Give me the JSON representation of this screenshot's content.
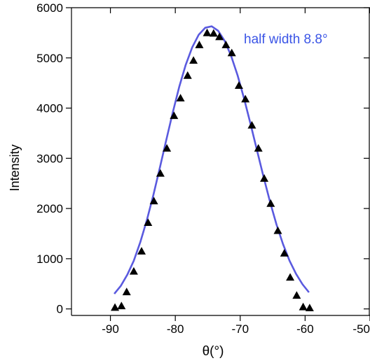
{
  "chart_data": {
    "type": "scatter",
    "xlabel": "θ(°)",
    "ylabel": "Intensity",
    "xlim": [
      -96,
      -50
    ],
    "ylim": [
      -130,
      6000
    ],
    "x_ticks": [
      -90,
      -80,
      -70,
      -60,
      -50
    ],
    "y_ticks": [
      0,
      1000,
      2000,
      3000,
      4000,
      5000,
      6000
    ],
    "grid": false,
    "legend": "none",
    "annotation": "half width 8.8°",
    "colors": {
      "fit": "#5a5adf",
      "points": "#000000",
      "annotation": "#3b55e6",
      "axis": "#000000"
    },
    "series": [
      {
        "marker": "triangle",
        "x": [
          -89.3,
          -88.3,
          -87.5,
          -86.4,
          -85.2,
          -84.2,
          -83.3,
          -82.3,
          -81.3,
          -80.2,
          -79.2,
          -78.1,
          -77.2,
          -76.3,
          -75.1,
          -74.1,
          -73.2,
          -72.2,
          -71.3,
          -70.2,
          -69.2,
          -68.2,
          -67.2,
          -66.3,
          -65.3,
          -64.2,
          -63.2,
          -62.3,
          -61.3,
          -60.3,
          -59.3
        ],
        "y": [
          30,
          60,
          340,
          750,
          1150,
          1720,
          2150,
          2700,
          3200,
          3850,
          4200,
          4650,
          4950,
          5260,
          5500,
          5490,
          5420,
          5260,
          5100,
          4450,
          4180,
          3660,
          3200,
          2600,
          2100,
          1560,
          1110,
          630,
          270,
          40,
          20
        ]
      },
      {
        "style": "line",
        "x": [
          -89.4,
          -88.4,
          -87.4,
          -86.4,
          -85.4,
          -84.4,
          -83.4,
          -82.4,
          -81.4,
          -80.4,
          -79.4,
          -78.4,
          -77.4,
          -76.4,
          -75.4,
          -74.4,
          -73.4,
          -72.4,
          -71.4,
          -70.4,
          -69.4,
          -68.4,
          -67.4,
          -66.4,
          -65.4,
          -64.4,
          -63.4,
          -62.4,
          -61.4,
          -60.4,
          -59.4
        ],
        "y": [
          300,
          460,
          680,
          960,
          1330,
          1760,
          2260,
          2800,
          3360,
          3910,
          4420,
          4860,
          5210,
          5460,
          5600,
          5630,
          5540,
          5340,
          5040,
          4650,
          4190,
          3680,
          3150,
          2630,
          2130,
          1680,
          1290,
          960,
          700,
          490,
          330
        ]
      }
    ]
  }
}
